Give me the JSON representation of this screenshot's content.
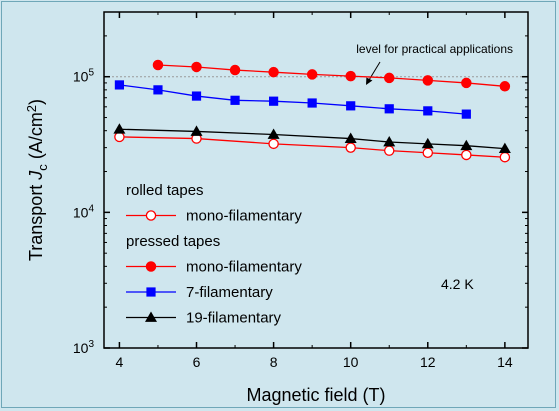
{
  "chart_data": {
    "type": "line",
    "title": "",
    "xlabel": "Magnetic field (T)",
    "ylabel": {
      "prefix": "Transport ",
      "italic": "J",
      "sub": "c",
      "suffix": " (A/cm",
      "sup": "2",
      "close": ")"
    },
    "xlim": [
      3.6,
      14.6
    ],
    "xticks": [
      4,
      6,
      8,
      10,
      12,
      14
    ],
    "ylog": true,
    "ylim": [
      1000,
      300000
    ],
    "yticks": [
      {
        "value": 1000,
        "base": "10",
        "exp": "3"
      },
      {
        "value": 10000,
        "base": "10",
        "exp": "4"
      },
      {
        "value": 100000,
        "base": "10",
        "exp": "5"
      }
    ],
    "reference_line": {
      "value": 100000,
      "label": "level for practical applications"
    },
    "annotation": "4.2 K",
    "legend_groups": [
      {
        "title": "rolled tapes",
        "series": [
          0
        ]
      },
      {
        "title": "pressed tapes",
        "series": [
          1,
          2,
          3
        ]
      }
    ],
    "series": [
      {
        "name": "mono-filamentary",
        "marker": "circle-open",
        "color": "#ff0000",
        "line_color": "#ff0000",
        "x": [
          4,
          6,
          8,
          10,
          11,
          12,
          13,
          14
        ],
        "y": [
          36000,
          35000,
          32000,
          30000,
          28500,
          27500,
          26500,
          25500
        ]
      },
      {
        "name": "mono-filamentary",
        "marker": "circle",
        "color": "#ff0000",
        "line_color": "#ff0000",
        "x": [
          5,
          6,
          7,
          8,
          9,
          10,
          11,
          12,
          13,
          14
        ],
        "y": [
          122000,
          118000,
          112000,
          108000,
          104000,
          101000,
          98000,
          94000,
          90000,
          85000
        ]
      },
      {
        "name": "7-filamentary",
        "marker": "square",
        "color": "#0000ff",
        "line_color": "#0000ff",
        "x": [
          4,
          5,
          6,
          7,
          8,
          9,
          10,
          11,
          12,
          13
        ],
        "y": [
          87000,
          80000,
          72000,
          67000,
          66000,
          64000,
          61000,
          58000,
          56000,
          53000
        ]
      },
      {
        "name": "19-filamentary",
        "marker": "triangle",
        "color": "#000000",
        "line_color": "#000000",
        "x": [
          4,
          6,
          8,
          10,
          11,
          12,
          13,
          14
        ],
        "y": [
          41000,
          39500,
          37500,
          35000,
          33000,
          32000,
          31000,
          29500
        ]
      }
    ]
  }
}
